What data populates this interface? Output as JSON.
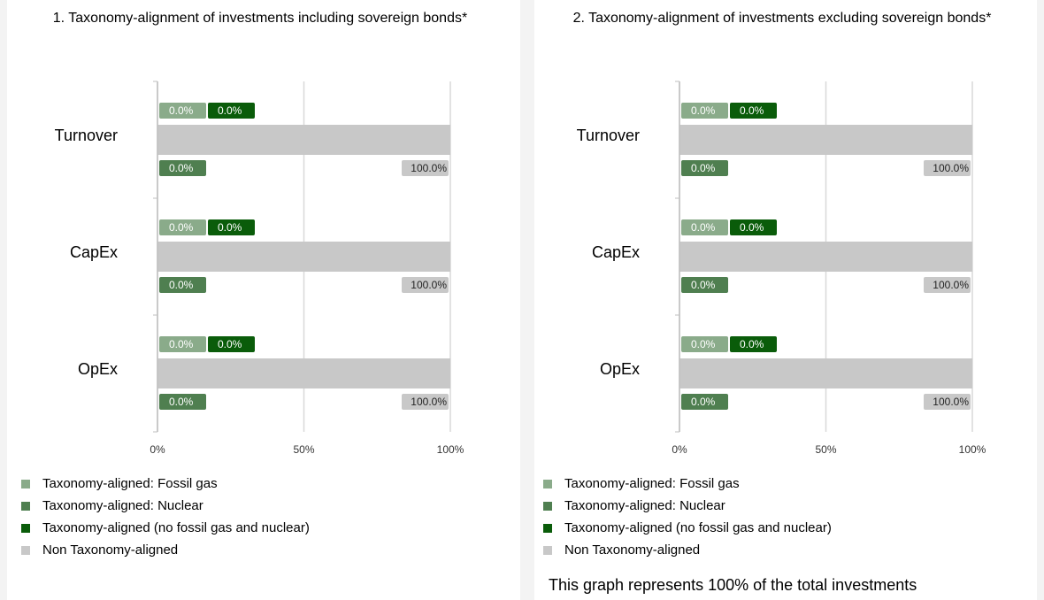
{
  "chart_data": [
    {
      "type": "bar",
      "orientation": "horizontal",
      "title": "1. Taxonomy-alignment of investments including sovereign bonds*",
      "categories": [
        "Turnover",
        "CapEx",
        "OpEx"
      ],
      "series": [
        {
          "name": "Taxonomy-aligned: Fossil gas",
          "color": "#8aab8a",
          "values": [
            0,
            0,
            0
          ],
          "value_labels": [
            "0.0%",
            "0.0%",
            "0.0%"
          ]
        },
        {
          "name": "Taxonomy-aligned: Nuclear",
          "color": "#4f7f50",
          "values": [
            0,
            0,
            0
          ],
          "value_labels": [
            "0.0%",
            "0.0%",
            "0.0%"
          ]
        },
        {
          "name": "Taxonomy-aligned (no fossil gas and nuclear)",
          "color": "#0a5c0a",
          "values": [
            0,
            0,
            0
          ],
          "value_labels": [
            "0.0%",
            "0.0%",
            "0.0%"
          ]
        },
        {
          "name": "Non Taxonomy-aligned",
          "color": "#c8c8c8",
          "values": [
            100,
            100,
            100
          ],
          "value_labels": [
            "100.0%",
            "100.0%",
            "100.0%"
          ]
        }
      ],
      "xlim": [
        0,
        100
      ],
      "xticks": [
        {
          "value": 0,
          "label": "0%"
        },
        {
          "value": 50,
          "label": "50%"
        },
        {
          "value": 100,
          "label": "100%"
        }
      ],
      "grid": true
    },
    {
      "type": "bar",
      "orientation": "horizontal",
      "title": "2. Taxonomy-alignment of investments excluding sovereign bonds*",
      "categories": [
        "Turnover",
        "CapEx",
        "OpEx"
      ],
      "series": [
        {
          "name": "Taxonomy-aligned: Fossil gas",
          "color": "#8aab8a",
          "values": [
            0,
            0,
            0
          ],
          "value_labels": [
            "0.0%",
            "0.0%",
            "0.0%"
          ]
        },
        {
          "name": "Taxonomy-aligned: Nuclear",
          "color": "#4f7f50",
          "values": [
            0,
            0,
            0
          ],
          "value_labels": [
            "0.0%",
            "0.0%",
            "0.0%"
          ]
        },
        {
          "name": "Taxonomy-aligned (no fossil gas and nuclear)",
          "color": "#0a5c0a",
          "values": [
            0,
            0,
            0
          ],
          "value_labels": [
            "0.0%",
            "0.0%",
            "0.0%"
          ]
        },
        {
          "name": "Non Taxonomy-aligned",
          "color": "#c8c8c8",
          "values": [
            100,
            100,
            100
          ],
          "value_labels": [
            "100.0%",
            "100.0%",
            "100.0%"
          ]
        }
      ],
      "xlim": [
        0,
        100
      ],
      "xticks": [
        {
          "value": 0,
          "label": "0%"
        },
        {
          "value": 50,
          "label": "50%"
        },
        {
          "value": 100,
          "label": "100%"
        }
      ],
      "grid": true,
      "note": "This graph represents 100% of the total investments"
    }
  ]
}
